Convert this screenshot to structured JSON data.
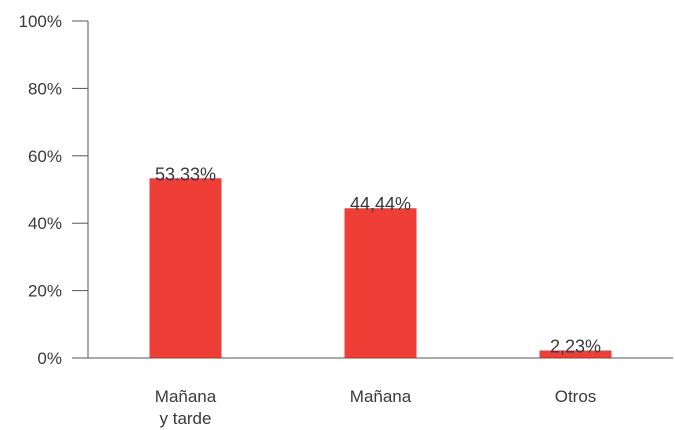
{
  "chart_data": {
    "type": "bar",
    "categories": [
      [
        "Mañana",
        "y tarde"
      ],
      [
        "Mañana"
      ],
      [
        "Otros"
      ]
    ],
    "values": [
      53.33,
      44.44,
      2.23
    ],
    "data_labels": [
      "53.33%",
      "44,44%",
      "2,23%"
    ],
    "ylim": [
      0,
      100
    ],
    "yticks": [
      0,
      20,
      40,
      60,
      80,
      100
    ],
    "ytick_labels": [
      "0%",
      "20%",
      "40%",
      "60%",
      "80%",
      "100%"
    ],
    "title": "",
    "xlabel": "",
    "ylabel": "",
    "grid": false,
    "legend": "none",
    "colors": {
      "bar": "#ef3e36",
      "axis": "#555555",
      "text": "#3a3a3a"
    }
  }
}
